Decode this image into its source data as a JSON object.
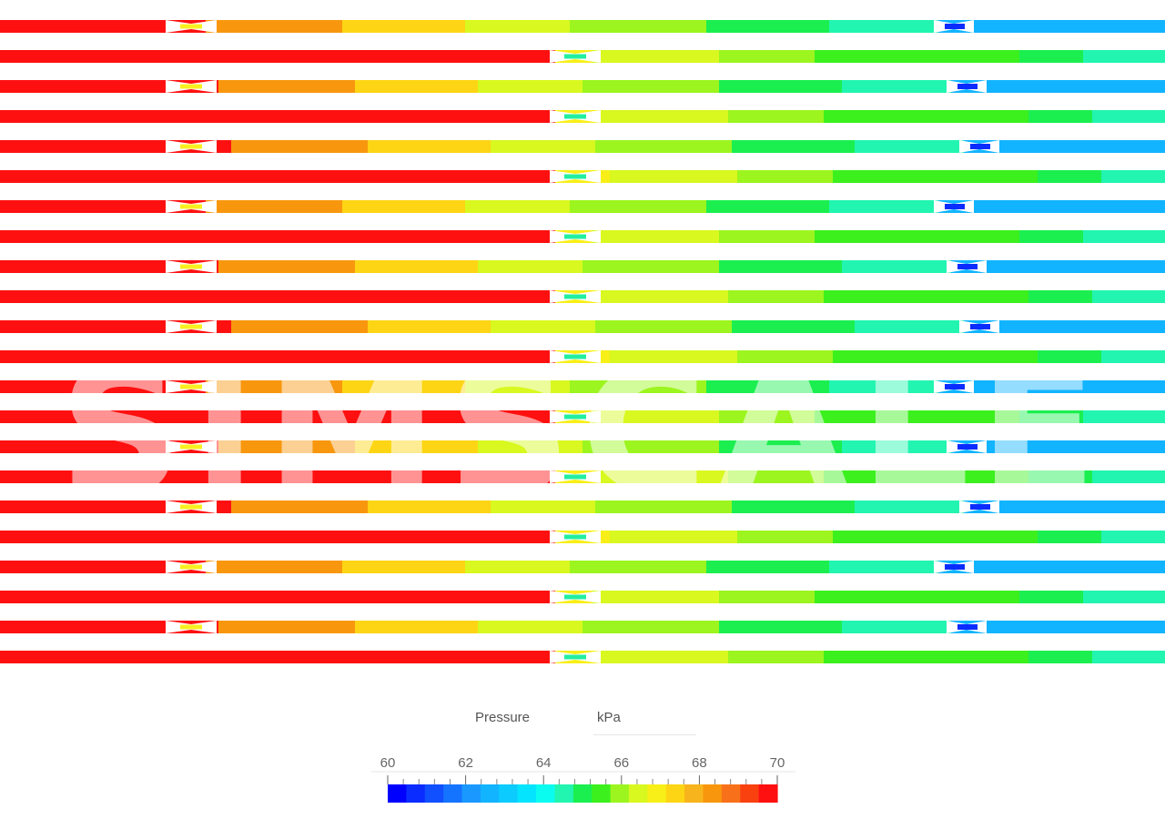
{
  "watermark": "SIMSCALE",
  "legend": {
    "title": "Pressure",
    "unit": "kPa",
    "min": 60,
    "max": 70,
    "tick_labels": [
      "60",
      "62",
      "64",
      "66",
      "68",
      "70"
    ],
    "minor_ticks_per_interval": 4,
    "swatches": [
      "#0000ff",
      "#0b2cff",
      "#1050ff",
      "#1574ff",
      "#1a98ff",
      "#12b4ff",
      "#0ccbff",
      "#04e4ff",
      "#0afbf0",
      "#22f5b0",
      "#1bef50",
      "#3cf01e",
      "#9cf51e",
      "#d8f81f",
      "#f8ef18",
      "#fdd514",
      "#f8b41c",
      "#f8970e",
      "#f8711a",
      "#f94110",
      "#fe1010"
    ]
  },
  "colors": {
    "blue": "#0000ff",
    "cyan": "#29e6ff",
    "teal": "#22efa0",
    "green": "#22ee33",
    "lime": "#99f530",
    "yellow": "#f8f020",
    "orange": "#f8b020",
    "red": "#ff2222"
  },
  "flow_rows": {
    "count": 22,
    "type_a_profile": [
      {
        "p": 70.0
      },
      {
        "p": 70.0
      },
      {
        "p": 68.6
      },
      {
        "p": 67.3
      },
      {
        "p": 66.6
      },
      {
        "p": 66.1
      },
      {
        "p": 65.2
      },
      {
        "p": 64.5
      },
      {
        "p": 62.7
      },
      {
        "p": 62.4
      }
    ],
    "type_b_profile": [
      {
        "p": 70.0
      },
      {
        "p": 66.9
      },
      {
        "p": 66.5
      },
      {
        "p": 66.1
      },
      {
        "p": 65.7
      },
      {
        "p": 65.4
      },
      {
        "p": 65.0
      },
      {
        "p": 64.7
      },
      {
        "p": 64.4
      }
    ]
  }
}
